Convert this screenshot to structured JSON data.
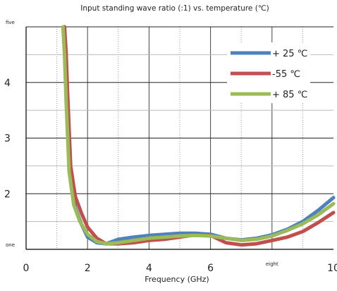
{
  "chart_data": {
    "type": "line",
    "title": "Input standing wave ratio (:1) vs. temperature (℃)",
    "xlabel": "Frequency (GHz)",
    "ylabel": "",
    "xlim": [
      0,
      10
    ],
    "ylim": [
      1,
      5
    ],
    "x_ticks": [
      {
        "value": 0,
        "label": "0",
        "size": "normal"
      },
      {
        "value": 2,
        "label": "2",
        "size": "normal"
      },
      {
        "value": 4,
        "label": "4",
        "size": "normal"
      },
      {
        "value": 6,
        "label": "6",
        "size": "normal"
      },
      {
        "value": 8,
        "label": "eight",
        "size": "small"
      },
      {
        "value": 10,
        "label": "10",
        "size": "normal"
      }
    ],
    "y_ticks": [
      {
        "value": 1,
        "label": "one",
        "size": "small"
      },
      {
        "value": 2,
        "label": "2",
        "size": "normal"
      },
      {
        "value": 3,
        "label": "3",
        "size": "normal"
      },
      {
        "value": 4,
        "label": "4",
        "size": "normal"
      },
      {
        "value": 5,
        "label": "five",
        "size": "small"
      }
    ],
    "grid": {
      "major": "solid",
      "minor": "dotted",
      "x_minor_step": 1,
      "y_minor_step": 0.5
    },
    "legend": {
      "position": "top-right"
    },
    "series": [
      {
        "name": "+ 25 ℃",
        "color": "#4F81BD",
        "x": [
          1.25,
          1.3,
          1.35,
          1.45,
          1.6,
          1.8,
          2.0,
          2.3,
          2.6,
          3.0,
          3.5,
          4.0,
          4.5,
          5.0,
          5.5,
          6.0,
          6.5,
          7.0,
          7.5,
          8.0,
          8.5,
          9.0,
          9.5,
          10.0
        ],
        "y": [
          5.0,
          4.3,
          3.4,
          2.3,
          1.75,
          1.45,
          1.22,
          1.12,
          1.1,
          1.18,
          1.22,
          1.25,
          1.27,
          1.29,
          1.29,
          1.27,
          1.2,
          1.17,
          1.2,
          1.26,
          1.36,
          1.5,
          1.7,
          1.93
        ]
      },
      {
        "name": "-55 ℃",
        "color": "#C0504D",
        "x": [
          1.25,
          1.3,
          1.35,
          1.45,
          1.6,
          1.8,
          2.0,
          2.3,
          2.6,
          3.0,
          3.5,
          4.0,
          4.5,
          5.0,
          5.5,
          6.0,
          6.5,
          7.0,
          7.5,
          8.0,
          8.5,
          9.0,
          9.5,
          10.0
        ],
        "y": [
          5.0,
          4.55,
          3.8,
          2.5,
          1.95,
          1.65,
          1.4,
          1.2,
          1.1,
          1.1,
          1.12,
          1.16,
          1.18,
          1.22,
          1.26,
          1.25,
          1.12,
          1.08,
          1.1,
          1.16,
          1.22,
          1.32,
          1.48,
          1.66
        ]
      },
      {
        "name": "+ 85 ℃",
        "color": "#9BBB59",
        "x": [
          1.2,
          1.25,
          1.3,
          1.4,
          1.55,
          1.75,
          2.0,
          2.3,
          2.6,
          3.0,
          3.5,
          4.0,
          4.5,
          5.0,
          5.5,
          6.0,
          6.5,
          7.0,
          7.5,
          8.0,
          8.5,
          9.0,
          9.5,
          10.0
        ],
        "y": [
          5.0,
          4.5,
          3.7,
          2.4,
          1.8,
          1.5,
          1.27,
          1.14,
          1.1,
          1.12,
          1.16,
          1.2,
          1.22,
          1.24,
          1.25,
          1.24,
          1.2,
          1.16,
          1.18,
          1.24,
          1.34,
          1.46,
          1.62,
          1.82
        ]
      }
    ]
  }
}
